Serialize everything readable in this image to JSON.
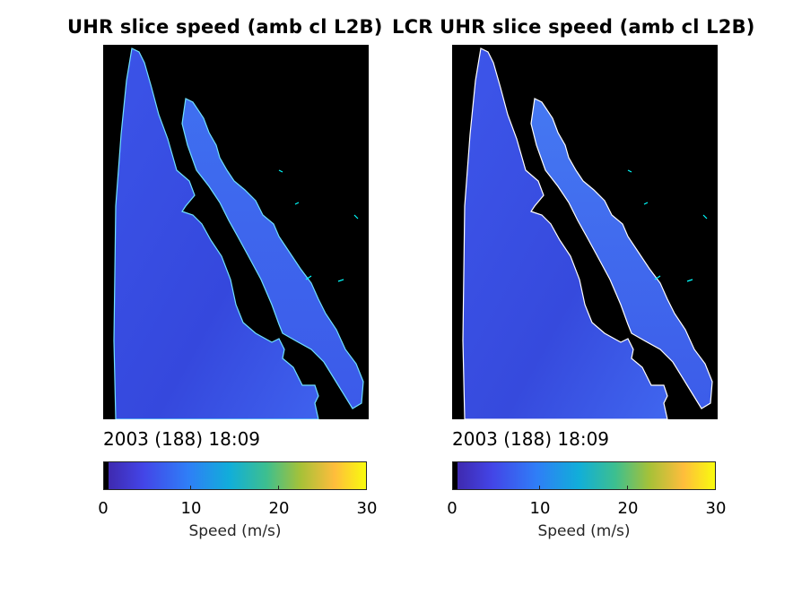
{
  "chart_data": [
    {
      "type": "heatmap",
      "title": "UHR slice speed (amb cl L2B)",
      "timestamp": "2003 (188) 18:09",
      "colorbar": {
        "label": "Speed (m/s)",
        "ticks": [
          0,
          10,
          20,
          30
        ],
        "range": [
          0,
          30
        ],
        "colormap": "parula"
      },
      "land_mask_color": "#000000",
      "coast_color": "#00ffff"
    },
    {
      "type": "heatmap",
      "title": "LCR UHR slice speed (amb cl L2B)",
      "timestamp": "2003 (188) 18:09",
      "colorbar": {
        "label": "Speed (m/s)",
        "ticks": [
          0,
          10,
          20,
          30
        ],
        "range": [
          0,
          30
        ],
        "colormap": "parula"
      },
      "land_mask_color": "#000000",
      "coast_color": "#00ffff"
    }
  ]
}
